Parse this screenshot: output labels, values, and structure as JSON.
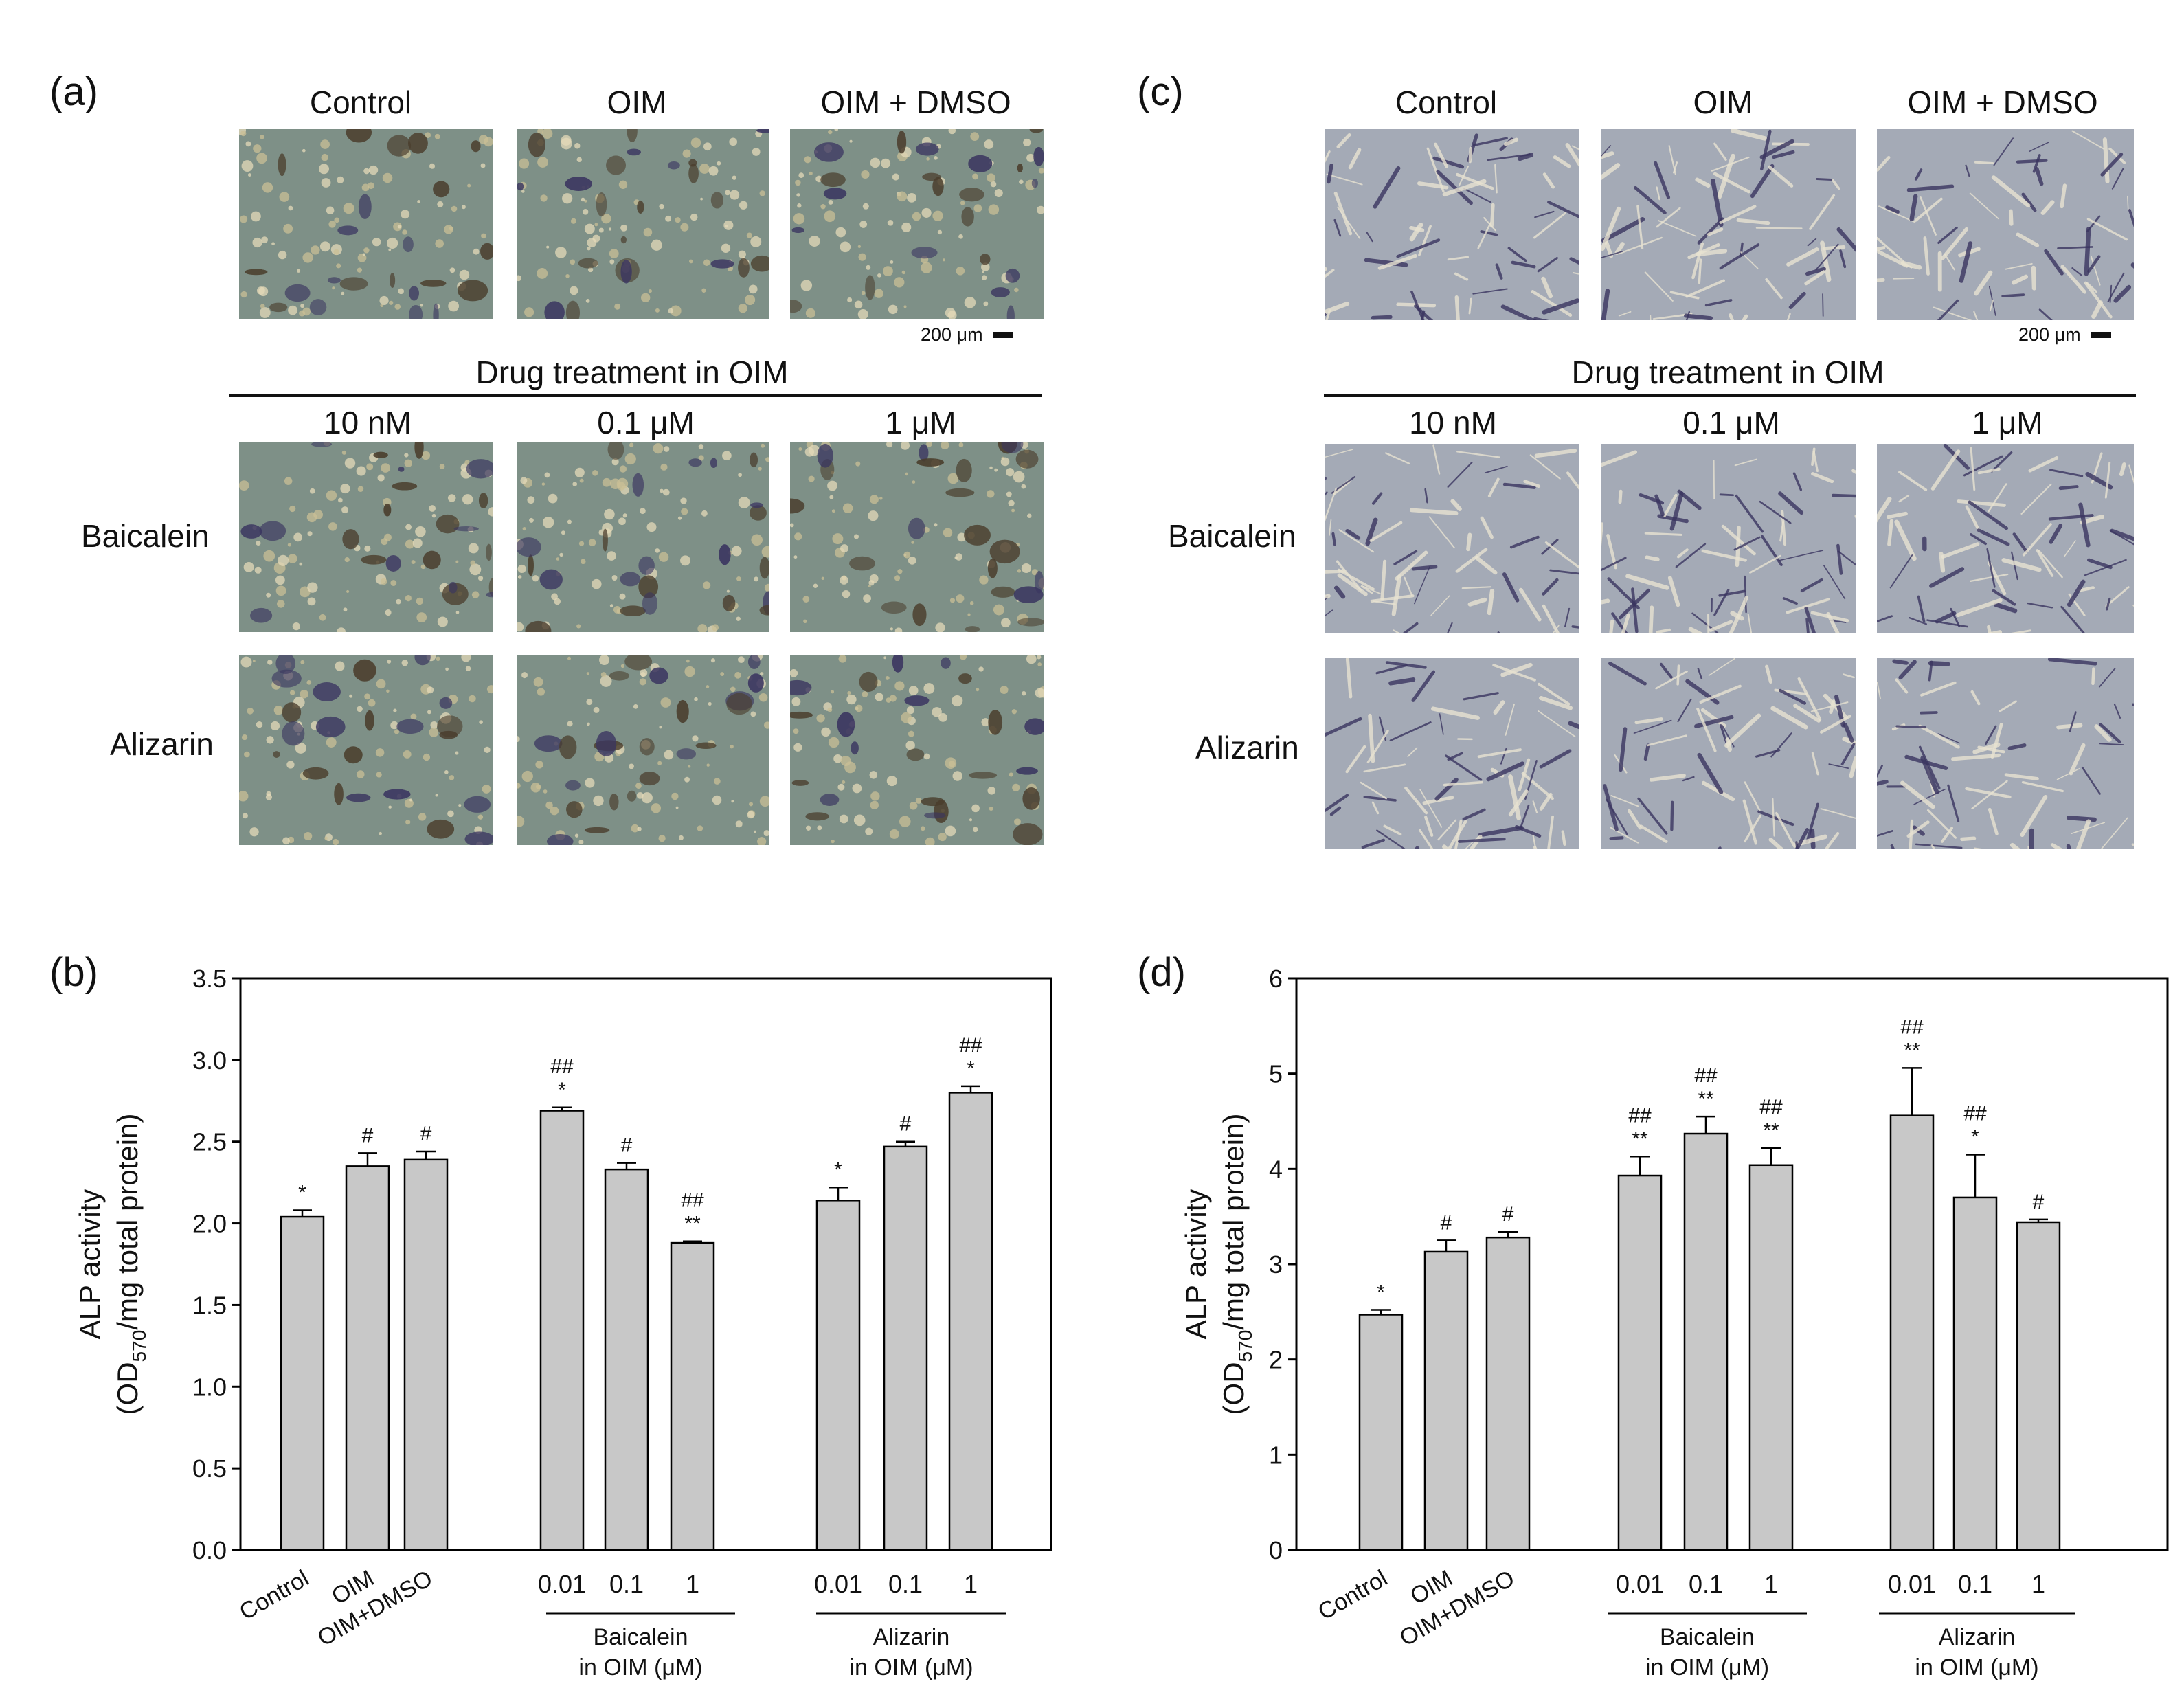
{
  "panel_labels": {
    "a": "(a)",
    "b": "(b)",
    "c": "(c)",
    "d": "(d)"
  },
  "image_panels": [
    {
      "column_labels": [
        "Control",
        "OIM",
        "OIM + DMSO"
      ],
      "drug_header": "Drug treatment in OIM",
      "concentration_labels": [
        "10 nM",
        "0.1 μM",
        "1 μM"
      ],
      "row_labels": [
        "Baicalein",
        "Alizarin"
      ],
      "scale_bar": "200 μm",
      "stain_style": "patchy mineralized clusters with dark brown and blue-purple staining"
    },
    {
      "column_labels": [
        "Control",
        "OIM",
        "OIM + DMSO"
      ],
      "drug_header": "Drug treatment in OIM",
      "concentration_labels": [
        "10 nM",
        "0.1 μM",
        "1 μM"
      ],
      "row_labels": [
        "Baicalein",
        "Alizarin"
      ],
      "scale_bar": "200 μm",
      "stain_style": "elongated spindle-shaped cells with dark blue-purple staining"
    }
  ],
  "colors": {
    "bar_fill": "#c8c8c8",
    "bar_stroke": "#000000",
    "micro_a_background": "#7e9087",
    "micro_c_background": "#a4aab6",
    "stain_purple": "#3a3560",
    "stain_brown": "#4a3d2c"
  },
  "chart_data": [
    {
      "type": "bar",
      "ylabel_line1": "ALP activity",
      "ylabel_line2_prefix": "(OD",
      "ylabel_line2_sub": "570",
      "ylabel_line2_suffix": "/mg total protein)",
      "ylim": [
        0,
        3.5
      ],
      "yticks": [
        "0.0",
        "0.5",
        "1.0",
        "1.5",
        "2.0",
        "2.5",
        "3.0",
        "3.5"
      ],
      "categories": [
        "Control",
        "OIM",
        "OIM+DMSO",
        "0.01",
        "0.1",
        "1",
        "0.01",
        "0.1",
        "1"
      ],
      "values": [
        2.04,
        2.35,
        2.39,
        2.69,
        2.33,
        1.88,
        2.14,
        2.47,
        2.8
      ],
      "errors": [
        0.04,
        0.08,
        0.05,
        0.02,
        0.04,
        0.01,
        0.08,
        0.03,
        0.04
      ],
      "annotations": [
        [
          "*"
        ],
        [
          "#"
        ],
        [
          "#"
        ],
        [
          "##",
          "*"
        ],
        [
          "#"
        ],
        [
          "##",
          "**"
        ],
        [
          "*"
        ],
        [
          "#"
        ],
        [
          "##",
          "*"
        ]
      ],
      "groups": [
        {
          "line1": "Baicalein",
          "line2": "in OIM (μM)"
        },
        {
          "line1": "Alizarin",
          "line2": "in OIM (μM)"
        }
      ]
    },
    {
      "type": "bar",
      "ylabel_line1": "ALP activity",
      "ylabel_line2_prefix": "(OD",
      "ylabel_line2_sub": "570",
      "ylabel_line2_suffix": "/mg total protein)",
      "ylim": [
        0,
        6
      ],
      "yticks": [
        "0",
        "1",
        "2",
        "3",
        "4",
        "5",
        "6"
      ],
      "categories": [
        "Control",
        "OIM",
        "OIM+DMSO",
        "0.01",
        "0.1",
        "1",
        "0.01",
        "0.1",
        "1"
      ],
      "values": [
        2.47,
        3.13,
        3.28,
        3.93,
        4.37,
        4.04,
        4.56,
        3.7,
        3.44
      ],
      "errors": [
        0.05,
        0.12,
        0.06,
        0.2,
        0.18,
        0.18,
        0.5,
        0.45,
        0.03
      ],
      "annotations": [
        [
          "*"
        ],
        [
          "#"
        ],
        [
          "#"
        ],
        [
          "##",
          "**"
        ],
        [
          "##",
          "**"
        ],
        [
          "##",
          "**"
        ],
        [
          "##",
          "**"
        ],
        [
          "##",
          "*"
        ],
        [
          "#"
        ]
      ],
      "groups": [
        {
          "line1": "Baicalein",
          "line2": "in OIM (μM)"
        },
        {
          "line1": "Alizarin",
          "line2": "in OIM (μM)"
        }
      ]
    }
  ]
}
